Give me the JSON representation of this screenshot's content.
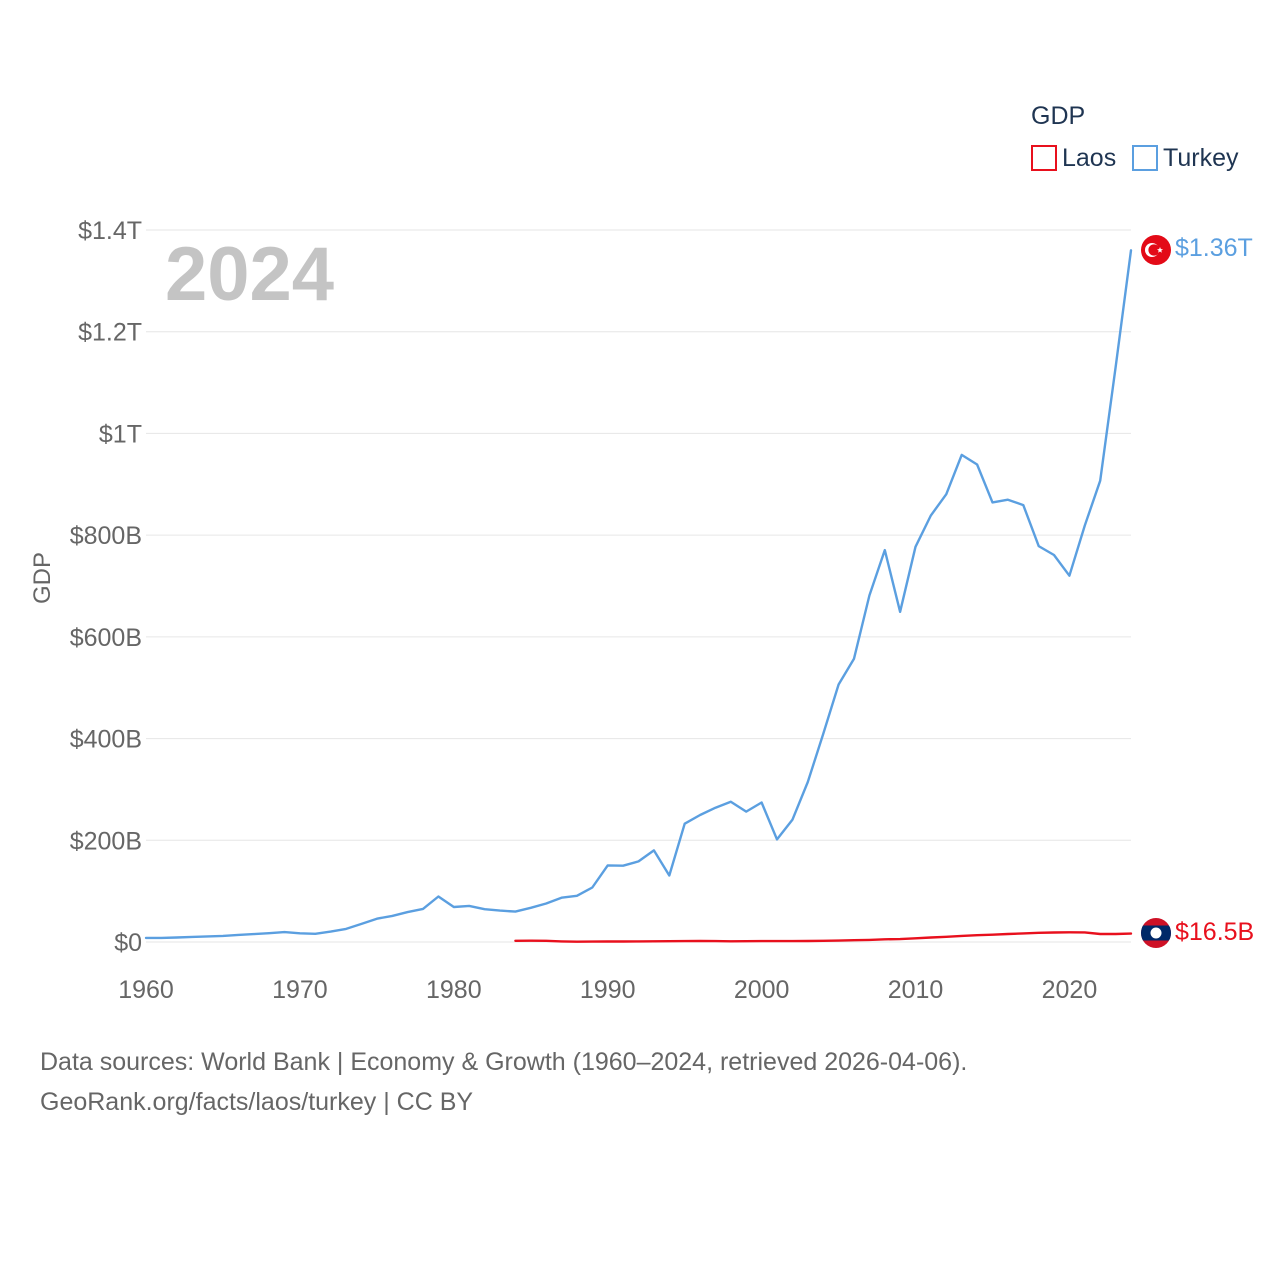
{
  "chart_data": {
    "type": "line",
    "title": "GDP",
    "ylabel": "GDP",
    "year_watermark": "2024",
    "legend_title": "GDP",
    "xlim": [
      1960,
      2024
    ],
    "ylim": [
      0,
      1400000000000
    ],
    "x_ticks": [
      1960,
      1970,
      1980,
      1990,
      2000,
      2010,
      2020
    ],
    "y_ticks": [
      {
        "value": 0,
        "label": "$0"
      },
      {
        "value": 200000000000,
        "label": "$200B"
      },
      {
        "value": 400000000000,
        "label": "$400B"
      },
      {
        "value": 600000000000,
        "label": "$600B"
      },
      {
        "value": 800000000000,
        "label": "$800B"
      },
      {
        "value": 1000000000000,
        "label": "$1T"
      },
      {
        "value": 1200000000000,
        "label": "$1.2T"
      },
      {
        "value": 1400000000000,
        "label": "$1.4T"
      }
    ],
    "series": [
      {
        "name": "Laos",
        "color": "#e8101d",
        "end_label": "$16.5B",
        "flag": "laos-flag",
        "x": [
          1984,
          1985,
          1986,
          1987,
          1988,
          1989,
          1990,
          1991,
          1992,
          1993,
          1994,
          1995,
          1996,
          1997,
          1998,
          1999,
          2000,
          2001,
          2002,
          2003,
          2004,
          2005,
          2006,
          2007,
          2008,
          2009,
          2010,
          2011,
          2012,
          2013,
          2014,
          2015,
          2016,
          2017,
          2018,
          2019,
          2020,
          2021,
          2022,
          2023,
          2024
        ],
        "values": [
          2400000000,
          2600000000,
          2300000000,
          1200000000,
          600000000,
          700000000,
          900000000,
          1000000000,
          1100000000,
          1300000000,
          1500000000,
          1800000000,
          1900000000,
          1700000000,
          1300000000,
          1500000000,
          1700000000,
          1700000000,
          1800000000,
          2000000000,
          2400000000,
          2700000000,
          3500000000,
          4200000000,
          5400000000,
          5800000000,
          7300000000,
          8800000000,
          10200000000,
          11900000000,
          13300000000,
          14400000000,
          15800000000,
          16900000000,
          18100000000,
          18700000000,
          19100000000,
          18800000000,
          15700000000,
          15800000000,
          16500000000
        ]
      },
      {
        "name": "Turkey",
        "color": "#5b9fe0",
        "end_label": "$1.36T",
        "flag": "turkey-flag",
        "x": [
          1960,
          1961,
          1962,
          1963,
          1964,
          1965,
          1966,
          1967,
          1968,
          1969,
          1970,
          1971,
          1972,
          1973,
          1974,
          1975,
          1976,
          1977,
          1978,
          1979,
          1980,
          1981,
          1982,
          1983,
          1984,
          1985,
          1986,
          1987,
          1988,
          1989,
          1990,
          1991,
          1992,
          1993,
          1994,
          1995,
          1996,
          1997,
          1998,
          1999,
          2000,
          2001,
          2002,
          2003,
          2004,
          2005,
          2006,
          2007,
          2008,
          2009,
          2010,
          2011,
          2012,
          2013,
          2014,
          2015,
          2016,
          2017,
          2018,
          2019,
          2020,
          2021,
          2022,
          2023,
          2024
        ],
        "values": [
          8000000000,
          8000000000,
          8900000000,
          10000000000,
          11000000000,
          11900000000,
          14000000000,
          15600000000,
          17400000000,
          19500000000,
          17100000000,
          16200000000,
          20400000000,
          25700000000,
          35600000000,
          45800000000,
          51300000000,
          58700000000,
          65100000000,
          89400000000,
          68800000000,
          71000000000,
          64500000000,
          61700000000,
          59800000000,
          67200000000,
          75700000000,
          87200000000,
          90900000000,
          107100000000,
          150700000000,
          150000000000,
          158500000000,
          180200000000,
          130700000000,
          232600000000,
          249800000000,
          264100000000,
          275900000000,
          256400000000,
          274300000000,
          201800000000,
          240300000000,
          314600000000,
          408900000000,
          506300000000,
          557100000000,
          681300000000,
          770500000000,
          649300000000,
          777000000000,
          838800000000,
          880500000000,
          957800000000,
          938900000000,
          864300000000,
          869700000000,
          859000000000,
          778500000000,
          761000000000,
          720300000000,
          819000000000,
          907100000000,
          1130000000000,
          1360000000000
        ]
      }
    ]
  },
  "source": {
    "line1": "Data sources: World Bank | Economy & Growth (1960–2024, retrieved 2026-04-06).",
    "line2": "GeoRank.org/facts/laos/turkey | CC BY"
  }
}
